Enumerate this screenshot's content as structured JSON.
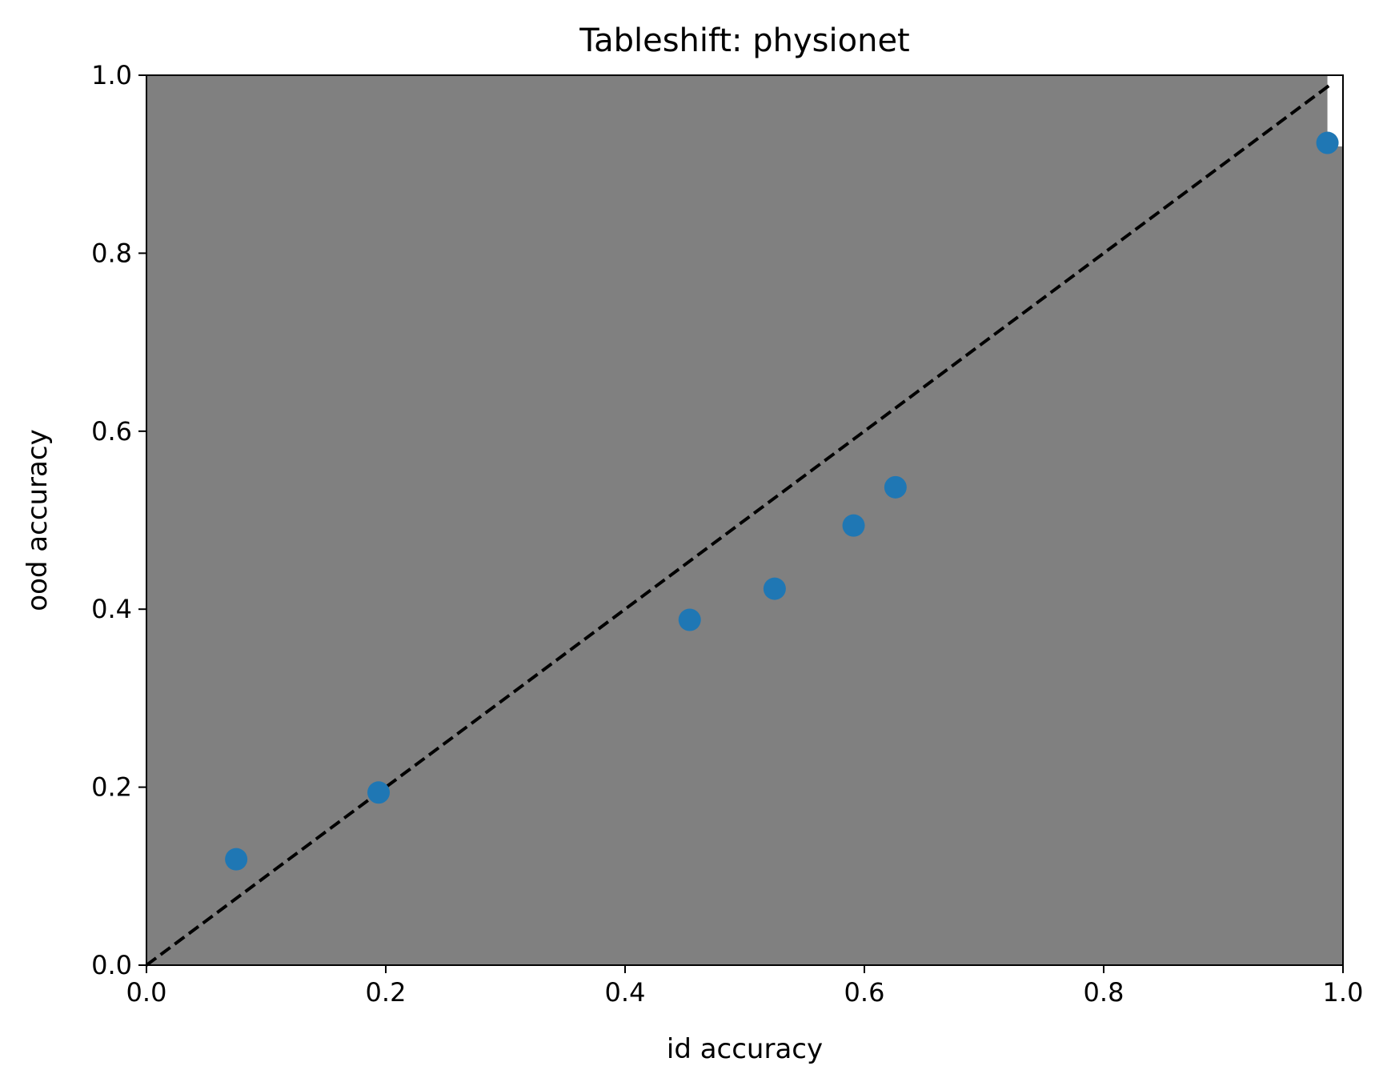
{
  "chart_data": {
    "type": "scatter",
    "title": "Tableshift: physionet",
    "xlabel": "id accuracy",
    "ylabel": "ood accuracy",
    "xlim": [
      0.0,
      1.0
    ],
    "ylim": [
      0.0,
      1.0
    ],
    "x_ticks": [
      "0.0",
      "0.2",
      "0.4",
      "0.6",
      "0.8",
      "1.0"
    ],
    "y_ticks": [
      "0.0",
      "0.2",
      "0.4",
      "0.6",
      "0.8",
      "1.0"
    ],
    "grid": false,
    "legend": "none",
    "plot_background": "#808080",
    "region_fill": "#ffffff",
    "point_color": "#1f77b4",
    "reference_line": {
      "style": "dashed",
      "color": "#000000",
      "from": [
        0.0,
        0.0
      ],
      "to": [
        0.99,
        0.99
      ]
    },
    "shaded_region": {
      "x_from": 0.987,
      "x_to": 1.0,
      "y_from": 0.92,
      "y_to": 1.0
    },
    "points": [
      {
        "x": 0.075,
        "y": 0.119
      },
      {
        "x": 0.194,
        "y": 0.194
      },
      {
        "x": 0.454,
        "y": 0.388
      },
      {
        "x": 0.525,
        "y": 0.423
      },
      {
        "x": 0.591,
        "y": 0.494
      },
      {
        "x": 0.626,
        "y": 0.537
      },
      {
        "x": 0.987,
        "y": 0.924
      }
    ]
  }
}
